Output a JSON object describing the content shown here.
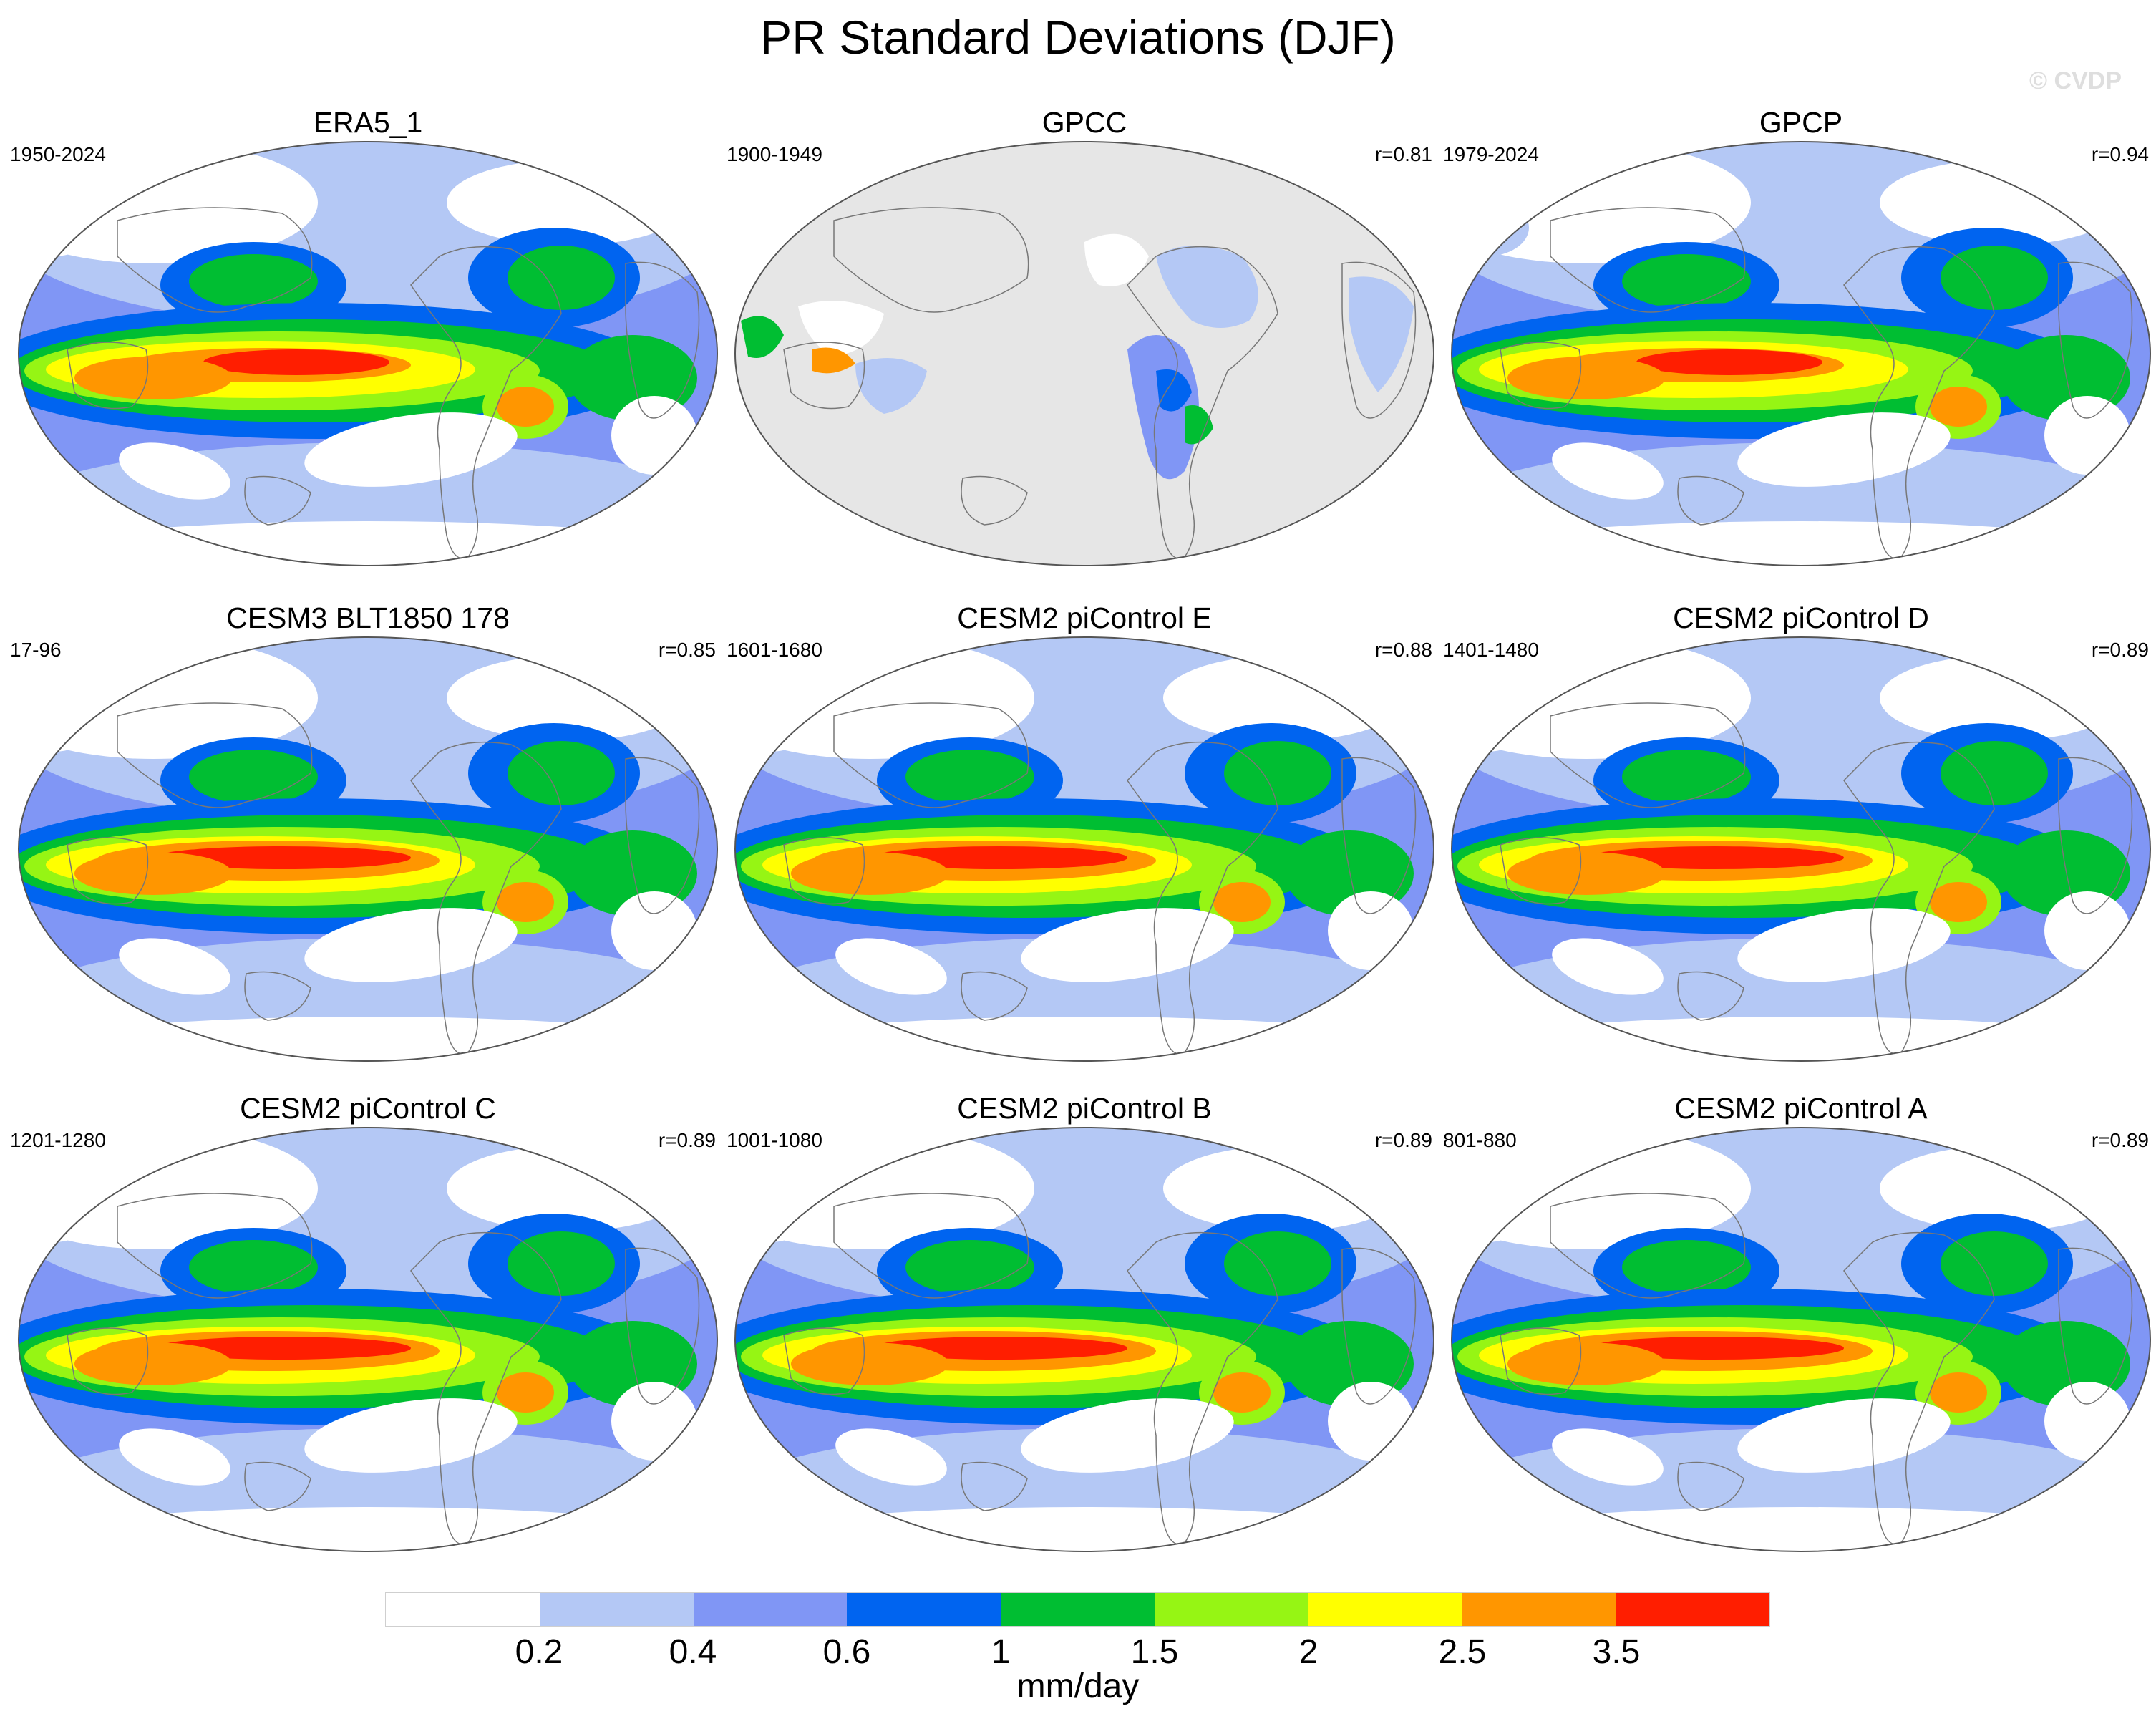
{
  "title": "PR Standard Deviations (DJF)",
  "watermark": "© CVDP",
  "panels": [
    {
      "title": "ERA5_1",
      "period": "1950-2024",
      "corr": "",
      "variant": "reanalysis"
    },
    {
      "title": "GPCC",
      "period": "1900-1949",
      "corr": "r=0.81",
      "variant": "land"
    },
    {
      "title": "GPCP",
      "period": "1979-2024",
      "corr": "r=0.94",
      "variant": "gpcp"
    },
    {
      "title": "CESM3 BLT1850 178",
      "period": "17-96",
      "corr": "r=0.85",
      "variant": "model"
    },
    {
      "title": "CESM2 piControl E",
      "period": "1601-1680",
      "corr": "r=0.88",
      "variant": "model"
    },
    {
      "title": "CESM2 piControl D",
      "period": "1401-1480",
      "corr": "r=0.89",
      "variant": "model"
    },
    {
      "title": "CESM2 piControl C",
      "period": "1201-1280",
      "corr": "r=0.89",
      "variant": "model"
    },
    {
      "title": "CESM2 piControl B",
      "period": "1001-1080",
      "corr": "r=0.89",
      "variant": "model"
    },
    {
      "title": "CESM2 piControl A",
      "period": "801-880",
      "corr": "r=0.89",
      "variant": "model"
    }
  ],
  "colorbar": {
    "colors": [
      "#ffffff",
      "#b4c8f5",
      "#8096f5",
      "#0064f0",
      "#00be32",
      "#96f514",
      "#ffff00",
      "#ff9600",
      "#ff1e00"
    ],
    "labels": [
      "0.2",
      "0.4",
      "0.6",
      "1",
      "1.5",
      "2",
      "2.5",
      "3.5"
    ],
    "units": "mm/day"
  },
  "ocean_fill": "#e6e6e6"
}
